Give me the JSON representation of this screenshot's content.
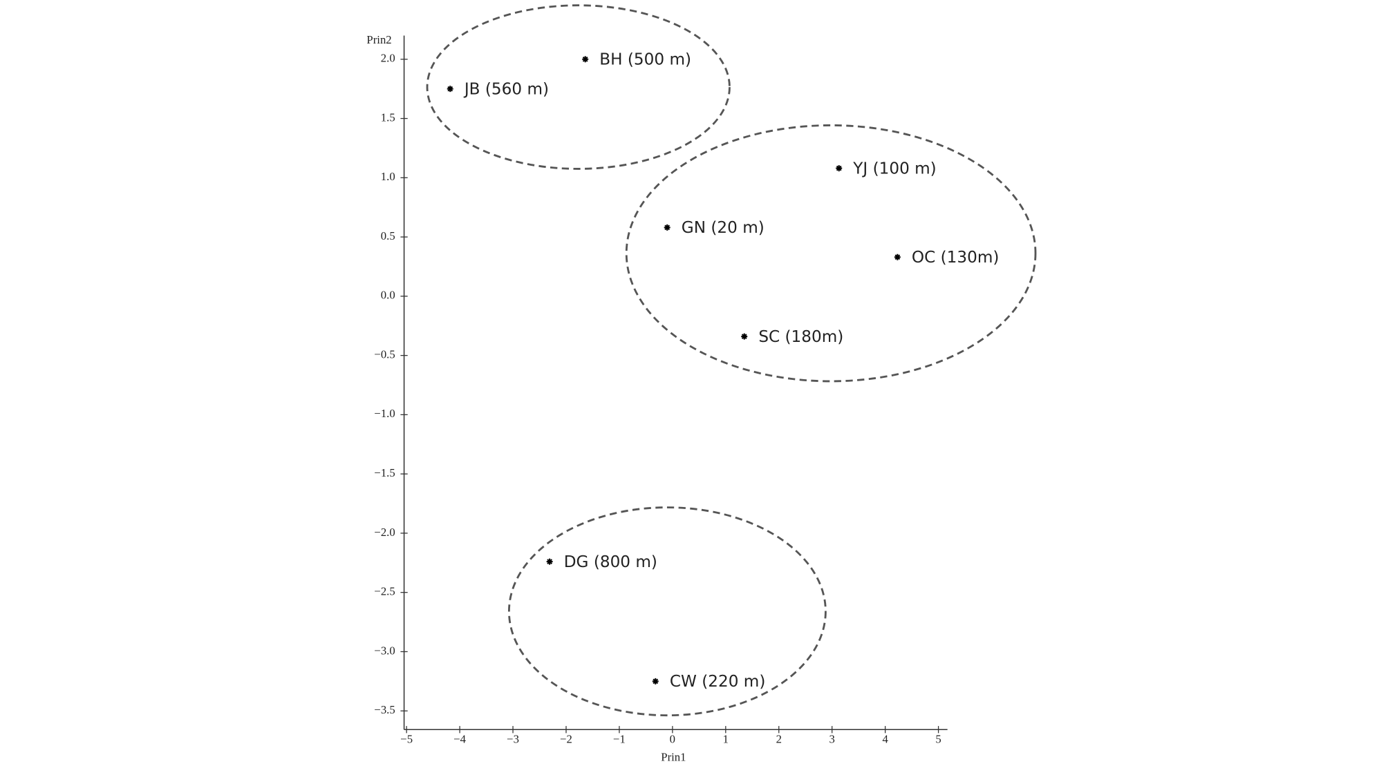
{
  "chart_data": {
    "type": "scatter",
    "x_label": "Prin1",
    "y_label": "Prin2",
    "x": [
      -1.64,
      -4.18,
      3.13,
      -0.1,
      4.23,
      1.35,
      -2.31,
      -0.32
    ],
    "values": [
      2.0,
      1.75,
      1.08,
      0.58,
      0.33,
      -0.34,
      -2.24,
      -3.25
    ],
    "labels": [
      "BH (500 m)",
      "JB (560 m)",
      "YJ (100 m)",
      "GN (20 m)",
      "OC (130m)",
      "SC (180m)",
      "DG (800 m)",
      "CW (220 m)"
    ],
    "color": "#000000",
    "xlim": [
      -5.08,
      5.17
    ],
    "ylim": [
      -3.65,
      2.2
    ],
    "xticks": [
      {
        "value": -5,
        "label": "−5"
      },
      {
        "value": -4,
        "label": "−4"
      },
      {
        "value": -3,
        "label": "−3"
      },
      {
        "value": -2,
        "label": "−2"
      },
      {
        "value": -1,
        "label": "−1"
      },
      0,
      1,
      2,
      3,
      4,
      5
    ],
    "yticks": [
      {
        "value": 2,
        "label": "2.0"
      },
      {
        "value": 1.5,
        "label": "1.5"
      },
      {
        "value": 1,
        "label": "1.0"
      },
      {
        "value": 0.5,
        "label": "0.5"
      },
      {
        "value": 0,
        "label": "0.0"
      },
      {
        "value": -0.5,
        "label": "−0.5"
      },
      {
        "value": -1,
        "label": "−1.0"
      },
      {
        "value": -1.5,
        "label": "−1.5"
      },
      {
        "value": -2,
        "label": "−2.0"
      },
      {
        "value": -2.5,
        "label": "−2.5"
      },
      {
        "value": -3,
        "label": "−3.0"
      },
      {
        "value": -3.5,
        "label": "−3.5"
      }
    ],
    "grid": false
  }
}
